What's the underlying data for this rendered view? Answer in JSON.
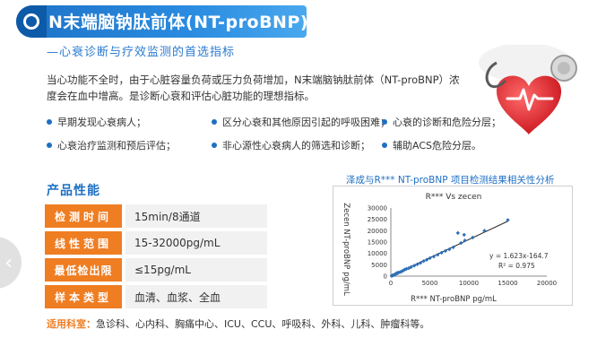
{
  "header": {
    "title": "N末端脑钠肽前体(NT-proBNP)",
    "subtitle": "—心衰诊断与疗效监测的首选指标"
  },
  "intro": {
    "text": "当心功能不全时，由于心脏容量负荷或压力负荷增加，N末端脑钠肽前体（NT-proBNP）浓度会在血中增高。是诊断心衰和评估心脏功能的理想指标。"
  },
  "bullets": [
    "早期发现心衰病人；",
    "区分心衰和其他原因引起的呼吸困难；",
    "心衰的诊断和危险分层；",
    "心衰治疗监测和预后评估；",
    "非心源性心衰病人的筛选和诊断；",
    "辅助ACS危险分层。"
  ],
  "performance": {
    "title": "产品性能",
    "rows": [
      {
        "label": "检测时间",
        "value": "15min/8通道"
      },
      {
        "label": "线性范围",
        "value": "15-32000pg/mL"
      },
      {
        "label": "最低检出限",
        "value": "≤15pg/mL"
      },
      {
        "label": "样本类型",
        "value": "血清、血浆、全血"
      }
    ]
  },
  "departments": {
    "label": "适用科室：",
    "value": "急诊科、心内科、胸痛中心、ICU、CCU、呼吸科、外科、儿科、肿瘤科等。"
  },
  "accent_colors": {
    "blue": "#1e6fc4",
    "orange": "#ef7d22"
  },
  "nav": {
    "prev_icon": "chevron-left-icon",
    "prev_glyph": "‹"
  },
  "chart_caption": "泽成与R*** NT-proBNP 项目检测结果相关性分析",
  "chart_data": {
    "type": "scatter",
    "title": "R*** Vs zecen",
    "xlabel": "R*** NT-proBNP pg/mL",
    "ylabel": "Zecen NT-proBNP pg/mL",
    "xlim": [
      0,
      20000
    ],
    "ylim": [
      0,
      30000
    ],
    "xticks": [
      "0",
      "5000",
      "10000",
      "15000",
      "20000"
    ],
    "yticks": [
      "0",
      "5000",
      "10000",
      "15000",
      "20000",
      "25000",
      "30000"
    ],
    "grid": false,
    "equation": "y = 1.623x-164.7",
    "r2": "R² = 0.975",
    "points": [
      [
        100,
        100
      ],
      [
        200,
        300
      ],
      [
        300,
        400
      ],
      [
        400,
        500
      ],
      [
        500,
        700
      ],
      [
        600,
        800
      ],
      [
        700,
        1200
      ],
      [
        800,
        1400
      ],
      [
        900,
        1300
      ],
      [
        1000,
        1600
      ],
      [
        1200,
        1800
      ],
      [
        1400,
        2100
      ],
      [
        1600,
        2500
      ],
      [
        1800,
        2900
      ],
      [
        2000,
        3200
      ],
      [
        2300,
        3500
      ],
      [
        2600,
        4000
      ],
      [
        3000,
        4600
      ],
      [
        3400,
        5200
      ],
      [
        3800,
        5800
      ],
      [
        4200,
        6600
      ],
      [
        4600,
        7200
      ],
      [
        5000,
        7900
      ],
      [
        5500,
        8600
      ],
      [
        6000,
        9400
      ],
      [
        6500,
        10300
      ],
      [
        7000,
        11100
      ],
      [
        7500,
        11800
      ],
      [
        8000,
        12700
      ],
      [
        9000,
        14600
      ],
      [
        9500,
        15700
      ],
      [
        8600,
        19000
      ],
      [
        9400,
        18200
      ],
      [
        10500,
        17000
      ],
      [
        12000,
        20000
      ],
      [
        15000,
        24700
      ]
    ],
    "trendline": [
      [
        0,
        -164.7
      ],
      [
        15000,
        24180
      ]
    ]
  }
}
